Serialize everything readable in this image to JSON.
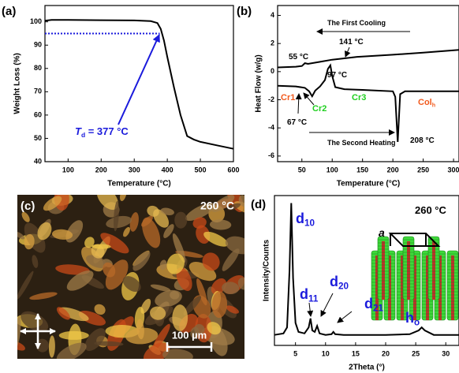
{
  "chart_data": [
    {
      "type": "line",
      "panel_label": "(a)",
      "xlabel": "Temperature (°C)",
      "ylabel": "Weight Loss (%)",
      "xlim": [
        30,
        600
      ],
      "ylim": [
        40,
        107
      ],
      "xticks": [
        100,
        200,
        300,
        400,
        500,
        600
      ],
      "yticks": [
        40,
        50,
        60,
        70,
        80,
        90,
        100
      ],
      "series": [
        {
          "color": "#000000",
          "x": [
            30,
            50,
            100,
            200,
            300,
            350,
            370,
            380,
            390,
            400,
            420,
            440,
            460,
            480,
            500,
            550,
            600
          ],
          "values": [
            100.5,
            100.8,
            100.8,
            100.7,
            100.6,
            100.3,
            99.5,
            97,
            92,
            85,
            72,
            60,
            51,
            49.5,
            48.5,
            47,
            45.5
          ]
        }
      ],
      "reference_line": {
        "y": 95,
        "x": [
          30,
          377
        ],
        "color": "#1a1adc"
      },
      "annotations": [
        {
          "text": "T",
          "sub": "d",
          "after": " = 377 °C",
          "color": "#1a1adc"
        }
      ]
    },
    {
      "type": "line",
      "panel_label": "(b)",
      "xlabel": "Temperature (°C)",
      "ylabel": "Heat Flow (w/g)",
      "xlim": [
        10,
        309
      ],
      "ylim": [
        -6.4,
        4.7
      ],
      "xticks": [
        50,
        100,
        150,
        200,
        250,
        300
      ],
      "yticks": [
        -6,
        -4,
        -2,
        0,
        2,
        4
      ],
      "series": [
        {
          "color": "#000000",
          "x": [
            10,
            40,
            50,
            55,
            60,
            80,
            100,
            141,
            200,
            250,
            309
          ],
          "values": [
            0.3,
            0.35,
            0.4,
            0.6,
            0.55,
            0.7,
            0.85,
            1.05,
            1.2,
            1.35,
            1.55
          ]
        },
        {
          "color": "#000000",
          "x": [
            10,
            40,
            55,
            62,
            67,
            72,
            80,
            88,
            93,
            97,
            100,
            105,
            120,
            150,
            200,
            204,
            208,
            212,
            220,
            260,
            309
          ],
          "values": [
            -1.0,
            -1.05,
            -1.15,
            -1.4,
            -1.75,
            -1.35,
            -1.05,
            -0.6,
            0.2,
            0.45,
            -0.3,
            -1.1,
            -1.25,
            -1.3,
            -1.4,
            -1.8,
            -5.0,
            -1.6,
            -1.4,
            -1.4,
            -1.4
          ]
        }
      ],
      "annotations": [
        {
          "text": "The First Cooling",
          "color": "#000000"
        },
        {
          "text": "141 °C",
          "color": "#000000"
        },
        {
          "text": "55 °C",
          "color": "#000000"
        },
        {
          "text": "97 °C",
          "color": "#000000"
        },
        {
          "text": "Cr1",
          "color": "#f25a1d"
        },
        {
          "text": "Cr2",
          "color": "#1fcf1f"
        },
        {
          "text": "Cr3",
          "color": "#1fcf1f"
        },
        {
          "text": "Col",
          "sub": "h",
          "color": "#f25a1d"
        },
        {
          "text": "67 °C",
          "color": "#000000"
        },
        {
          "text": "The Second Heating",
          "color": "#000000"
        },
        {
          "text": "208 °C",
          "color": "#000000"
        }
      ]
    },
    {
      "type": "line",
      "panel_label": "(d)",
      "xlabel": "2Theta (°)",
      "ylabel": "Intensity/Counts",
      "xlim": [
        1.5,
        32.2
      ],
      "ylim": [
        0,
        1
      ],
      "xticks": [
        5,
        10,
        15,
        20,
        25,
        30
      ],
      "series": [
        {
          "color": "#000000",
          "x": [
            1.5,
            3,
            3.6,
            4.0,
            4.3,
            4.6,
            5.0,
            5.5,
            6.5,
            7.2,
            7.5,
            7.8,
            8.2,
            8.6,
            9,
            10,
            11,
            11.3,
            11.6,
            13,
            20,
            24,
            25.5,
            26,
            26.5,
            28,
            32.2
          ],
          "values": [
            0.07,
            0.08,
            0.12,
            0.5,
            0.95,
            0.45,
            0.15,
            0.09,
            0.08,
            0.12,
            0.18,
            0.1,
            0.09,
            0.13,
            0.08,
            0.07,
            0.075,
            0.09,
            0.075,
            0.07,
            0.07,
            0.075,
            0.1,
            0.12,
            0.1,
            0.07,
            0.07
          ]
        }
      ],
      "annotations": [
        {
          "text": "d",
          "sub": "10",
          "color": "#1a1adc"
        },
        {
          "text": "d",
          "sub": "11",
          "color": "#1a1adc"
        },
        {
          "text": "d",
          "sub": "20",
          "color": "#1a1adc"
        },
        {
          "text": "d",
          "sub": "21",
          "color": "#1a1adc"
        },
        {
          "text": "h",
          "sub": "o",
          "color": "#1a1adc"
        },
        {
          "text": "260 °C",
          "color": "#000000"
        },
        {
          "text": "a",
          "color": "#000000"
        }
      ]
    }
  ],
  "image_panel": {
    "panel_label": "(c)",
    "temperature": "260 °C",
    "scale_bar": "100 µm"
  }
}
